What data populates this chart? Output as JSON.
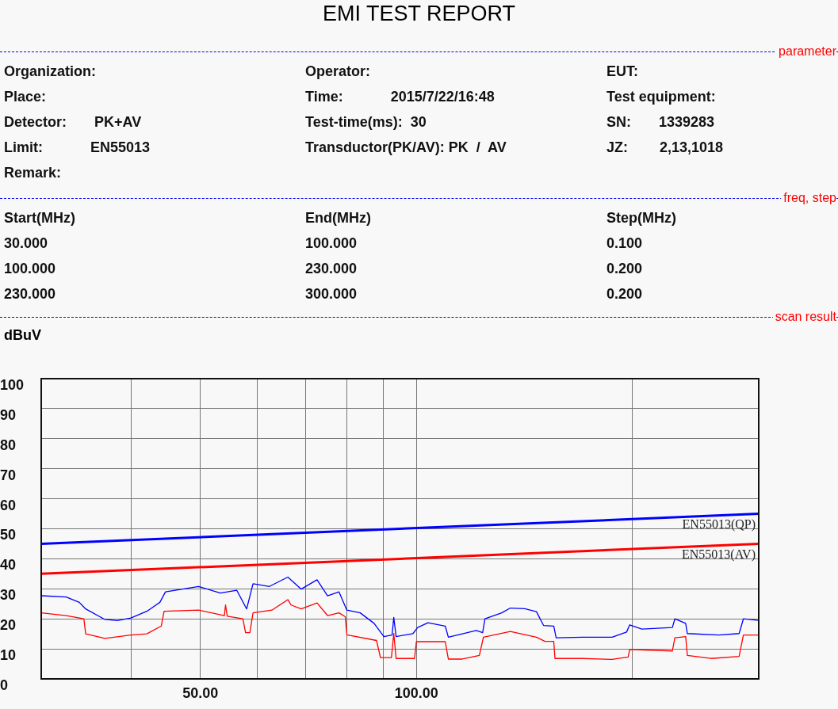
{
  "chart_data": {
    "type": "line",
    "title": "EMI TEST REPORT",
    "ylabel": "dBuV",
    "annotations": [
      "parameter",
      "Organization:",
      "Operator:",
      "EUT:",
      "Place:",
      "Time:            2015/7/22/16:48",
      "Test equipment:",
      "Detector:       PK+AV",
      "Test-time(ms):  30",
      "SN:       1339283",
      "Limit:            EN55013",
      "Transductor(PK/AV): PK  /  AV",
      "JZ:        2,13,1018",
      "Remark:",
      "freq, step",
      "Start(MHz)",
      "End(MHz)",
      "Step(MHz)",
      "30.000",
      "100.000",
      "0.100",
      "100.000",
      "230.000",
      "0.200",
      "230.000",
      "300.000",
      "0.200",
      "scan result"
    ],
    "log": "x",
    "grid": true,
    "marker": "none",
    "line_style": "solid",
    "xlim": [
      30,
      300
    ],
    "xticks": [
      {
        "value": 40,
        "label": null
      },
      {
        "value": 50,
        "label": "50.00"
      },
      {
        "value": 60,
        "label": null
      },
      {
        "value": 70,
        "label": null
      },
      {
        "value": 80,
        "label": null
      },
      {
        "value": 90,
        "label": null
      },
      {
        "value": 100,
        "label": "100.00"
      },
      {
        "value": 200,
        "label": null
      }
    ],
    "ylim": [
      0,
      100
    ],
    "yticks": [
      0,
      10,
      20,
      30,
      40,
      50,
      60,
      70,
      80,
      90,
      100
    ],
    "series": [
      {
        "name": "EN55013(QP)",
        "color": "#0000ff",
        "x": [
          30,
          300
        ],
        "values": [
          45,
          55
        ]
      },
      {
        "name": "EN55013(AV)",
        "color": "#ff0000",
        "x": [
          30,
          300
        ],
        "values": [
          35,
          45
        ]
      },
      {
        "color": "#0000ff",
        "x": [
          30,
          32.5,
          33.9,
          34.6,
          36.8,
          38.3,
          40,
          42.1,
          43.9,
          44.7,
          49.7,
          53.3,
          56.2,
          58,
          59.2,
          62.4,
          66.2,
          69.1,
          72.7,
          75.2,
          78,
          80,
          83.5,
          87.3,
          90.1,
          92.5,
          93,
          93.7,
          98.9,
          100.4,
          103.8,
          109.7,
          110.8,
          121.2,
          123.7,
          124.6,
          131.5,
          135.2,
          141.6,
          147,
          150.4,
          155.4,
          156.6,
          170.4,
          187.4,
          196.3,
          198.3,
          206.2,
          227.4,
          229.2,
          237.3,
          238.6,
          264,
          281.7,
          285.6,
          300
        ],
        "values": [
          27.7,
          27.3,
          25.5,
          23.3,
          19.8,
          19.4,
          20.3,
          22.5,
          25.5,
          29,
          30.8,
          28.6,
          29.5,
          23.3,
          31.7,
          30.8,
          33.9,
          29.9,
          33,
          27.7,
          29,
          22.9,
          22,
          18.5,
          14.1,
          14.6,
          20.5,
          14.1,
          15.1,
          17.1,
          18.7,
          17.6,
          13.9,
          16.1,
          15.4,
          20,
          22,
          23.6,
          23.4,
          22.4,
          17.8,
          17.6,
          13.7,
          13.9,
          13.9,
          15.6,
          18,
          16.6,
          17.1,
          20,
          18.5,
          15.1,
          14.6,
          15.1,
          20,
          19.5
        ]
      },
      {
        "color": "#ff0000",
        "x": [
          30,
          32.5,
          34.4,
          34.6,
          36.8,
          40,
          42.1,
          44.1,
          44.5,
          49.7,
          54,
          54.2,
          54.5,
          57.3,
          57.8,
          58.6,
          59.2,
          62.9,
          66.2,
          66.9,
          69.1,
          72.7,
          75.2,
          78,
          79.6,
          80,
          88,
          89.1,
          92.3,
          93,
          93.7,
          99.4,
          100,
          109.7,
          110.8,
          115.9,
          122.4,
          124,
          135.2,
          147,
          151.1,
          155.4,
          156,
          170.4,
          187.4,
          197.3,
          198.3,
          227.4,
          229.2,
          237.3,
          238.6,
          257.5,
          281.7,
          285.6,
          300
        ],
        "values": [
          22,
          21.1,
          20,
          15,
          13.5,
          14.6,
          15,
          17.6,
          22.5,
          22.9,
          21.1,
          24.6,
          20.9,
          20,
          15.4,
          15.4,
          22,
          22.9,
          26.4,
          24.6,
          23.3,
          25.3,
          21.1,
          22,
          20.7,
          14.7,
          12.8,
          7.1,
          7.1,
          15.1,
          6.8,
          6.8,
          12.4,
          12.4,
          6.6,
          6.6,
          7.8,
          13.9,
          15.8,
          13.9,
          12.5,
          12.5,
          6.8,
          6.8,
          6.5,
          7.3,
          9.8,
          9.3,
          13.7,
          14.1,
          7.8,
          6.8,
          7.5,
          14.6,
          14.6
        ]
      }
    ]
  }
}
